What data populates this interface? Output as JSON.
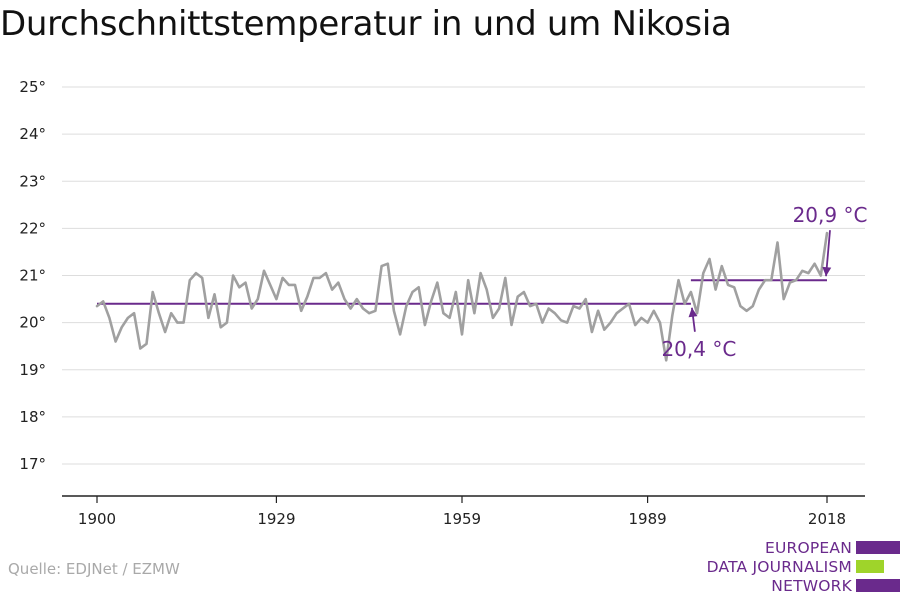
{
  "title": "Durchschnittstemperatur in und um Nikosia",
  "source": "Quelle: EDJNet / EZMW",
  "logo": {
    "lines": [
      "EUROPEAN",
      "DATA JOURNALISM",
      "NETWORK"
    ],
    "text_color": "#6a2a8c",
    "bar_colors": [
      "#6a2a8c",
      "#9fd42a",
      "#6a2a8c"
    ]
  },
  "colors": {
    "line": "#a0a0a0",
    "average": "#6a2a8c",
    "grid": "#dddddd",
    "axis": "#222222"
  },
  "chart_data": {
    "type": "line",
    "title": "Durchschnittstemperatur in und um Nikosia",
    "xlabel": "",
    "ylabel": "",
    "xlim": [
      1900,
      2018
    ],
    "ylim": [
      17,
      25
    ],
    "grid": true,
    "yticks": [
      17,
      18,
      19,
      20,
      21,
      22,
      23,
      24,
      25
    ],
    "ytick_labels": [
      "17°",
      "18°",
      "19°",
      "20°",
      "21°",
      "22°",
      "23°",
      "24°",
      "25°"
    ],
    "xticks": [
      1900,
      1929,
      1959,
      1989,
      2018
    ],
    "xtick_labels": [
      "1900",
      "1929",
      "1959",
      "1989",
      "2018"
    ],
    "series": [
      {
        "x": [
          1900,
          1901,
          1902,
          1903,
          1904,
          1905,
          1906,
          1907,
          1908,
          1909,
          1910,
          1911,
          1912,
          1913,
          1914,
          1915,
          1916,
          1917,
          1918,
          1919,
          1920,
          1921,
          1922,
          1923,
          1924,
          1925,
          1926,
          1927,
          1928,
          1929,
          1930,
          1931,
          1932,
          1933,
          1934,
          1935,
          1936,
          1937,
          1938,
          1939,
          1940,
          1941,
          1942,
          1943,
          1944,
          1945,
          1946,
          1947,
          1948,
          1949,
          1950,
          1951,
          1952,
          1953,
          1954,
          1955,
          1956,
          1957,
          1958,
          1959,
          1960,
          1961,
          1962,
          1963,
          1964,
          1965,
          1966,
          1967,
          1968,
          1969,
          1970,
          1971,
          1972,
          1973,
          1974,
          1975,
          1976,
          1977,
          1978,
          1979,
          1980,
          1981,
          1982,
          1983,
          1984,
          1985,
          1986,
          1987,
          1988,
          1989,
          1990,
          1991,
          1992,
          1993,
          1994,
          1995,
          1996,
          1997,
          1998,
          1999,
          2000,
          2001,
          2002,
          2003,
          2004,
          2005,
          2006,
          2007,
          2008,
          2009,
          2010,
          2011,
          2012,
          2013,
          2014,
          2015,
          2016,
          2017,
          2018
        ],
        "values": [
          20.35,
          20.45,
          20.1,
          19.6,
          19.9,
          20.1,
          20.2,
          19.45,
          19.55,
          20.65,
          20.2,
          19.8,
          20.2,
          20.0,
          20.0,
          20.9,
          21.05,
          20.95,
          20.1,
          20.6,
          19.9,
          20.0,
          21.0,
          20.75,
          20.85,
          20.3,
          20.5,
          21.1,
          20.8,
          20.5,
          20.95,
          20.8,
          20.8,
          20.25,
          20.55,
          20.95,
          20.95,
          21.05,
          20.7,
          20.85,
          20.5,
          20.3,
          20.5,
          20.3,
          20.2,
          20.25,
          21.2,
          21.25,
          20.25,
          19.75,
          20.35,
          20.65,
          20.75,
          19.95,
          20.45,
          20.85,
          20.2,
          20.1,
          20.65,
          19.75,
          20.9,
          20.2,
          21.05,
          20.7,
          20.1,
          20.3,
          20.95,
          19.95,
          20.55,
          20.65,
          20.35,
          20.4,
          20.0,
          20.3,
          20.2,
          20.05,
          20.0,
          20.35,
          20.3,
          20.5,
          19.8,
          20.25,
          19.85,
          20.0,
          20.2,
          20.3,
          20.4,
          19.95,
          20.1,
          20.0,
          20.25,
          20.0,
          19.2,
          20.15,
          20.9,
          20.4,
          20.65,
          20.2,
          21.05,
          21.35,
          20.7,
          21.2,
          20.8,
          20.75,
          20.35,
          20.25,
          20.35,
          20.7,
          20.9,
          20.9,
          21.7,
          20.5,
          20.85,
          20.9,
          21.1,
          21.05,
          21.25,
          21.0,
          21.9
        ]
      }
    ],
    "average_lines": [
      {
        "label": "20,4 °C",
        "value": 20.4,
        "x_start": 1900,
        "x_end": 1996
      },
      {
        "label": "20,9 °C",
        "value": 20.9,
        "x_start": 1996,
        "x_end": 2018
      }
    ]
  }
}
